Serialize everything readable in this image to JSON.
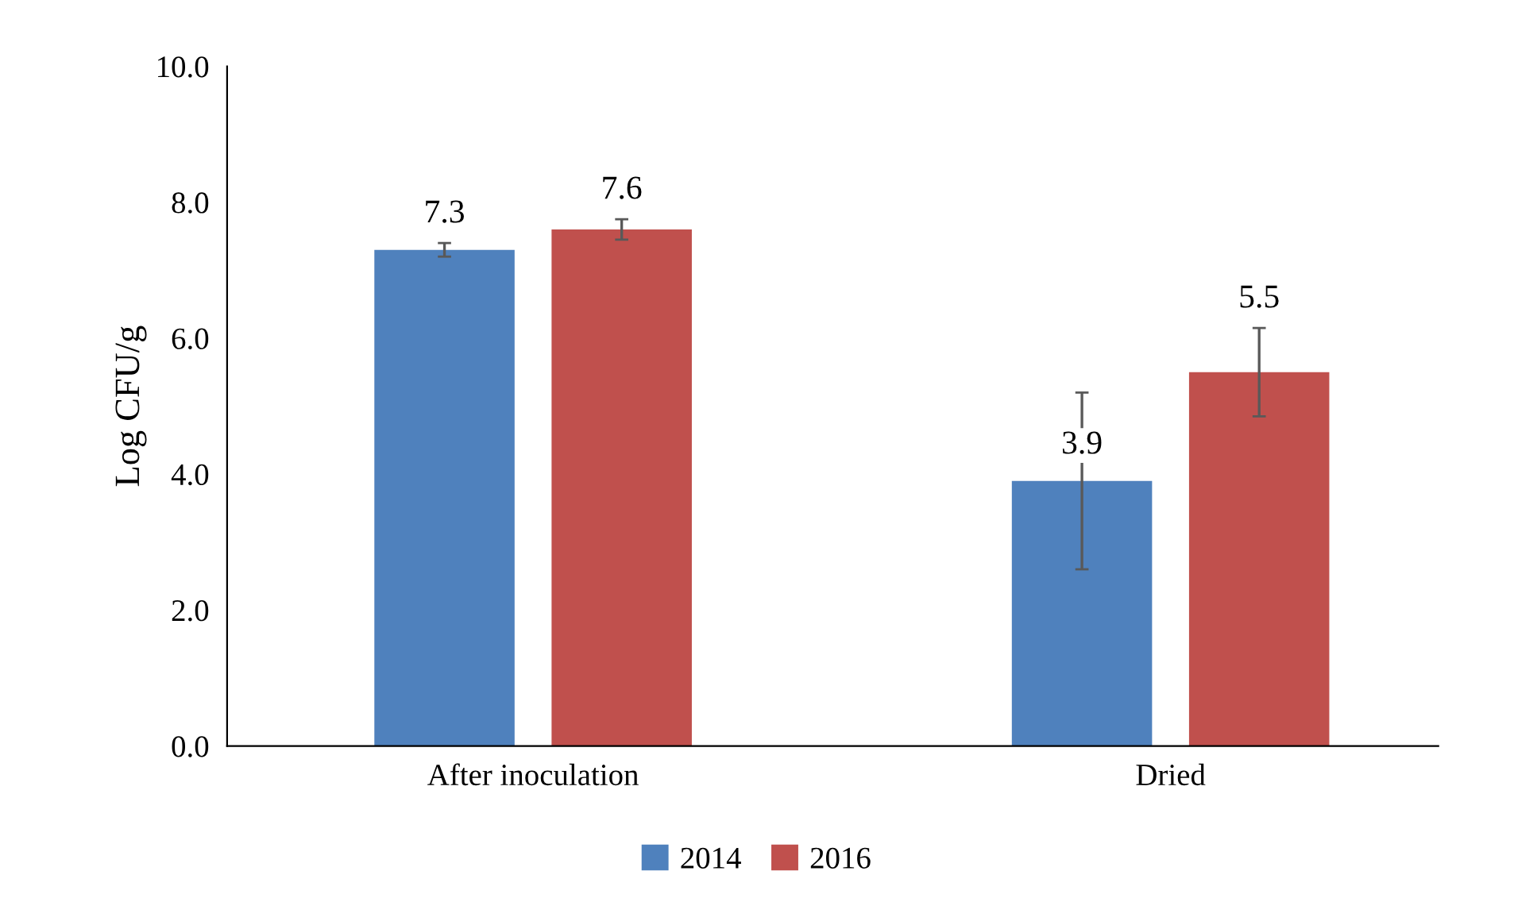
{
  "chart_data": {
    "type": "bar",
    "ylabel": "Log CFU/g",
    "categories": [
      "After inoculation",
      "Dried"
    ],
    "series": [
      {
        "name": "2014",
        "color": "#4f81bd",
        "values": [
          7.3,
          3.9
        ],
        "errors": [
          0.1,
          1.3
        ]
      },
      {
        "name": "2016",
        "color": "#c0504d",
        "values": [
          7.6,
          5.5
        ],
        "errors": [
          0.15,
          0.65
        ]
      }
    ],
    "ylim": [
      0,
      10
    ],
    "yticks": [
      {
        "value": 0,
        "label": "0.0"
      },
      {
        "value": 2,
        "label": "2.0"
      },
      {
        "value": 4,
        "label": "4.0"
      },
      {
        "value": 6,
        "label": "6.0"
      },
      {
        "value": 8,
        "label": "8.0"
      },
      {
        "value": 10,
        "label": "10.0"
      }
    ],
    "data_labels": true,
    "legend": "bottom",
    "grid": false
  }
}
